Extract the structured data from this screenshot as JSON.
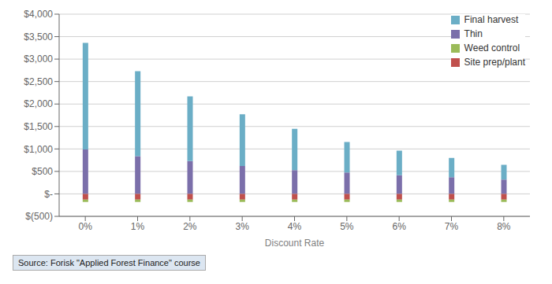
{
  "chart_data": {
    "type": "bar",
    "stacked": true,
    "grid": true,
    "xlabel": "Discount Rate",
    "categories": [
      "0%",
      "1%",
      "2%",
      "3%",
      "4%",
      "5%",
      "6%",
      "7%",
      "8%"
    ],
    "series": [
      {
        "name": "Thin",
        "color": "#7b6faa",
        "values": [
          990,
          840,
          730,
          620,
          530,
          475,
          415,
          370,
          320
        ]
      },
      {
        "name": "Final harvest",
        "color": "#6baec6",
        "values": [
          2370,
          1890,
          1440,
          1150,
          920,
          680,
          545,
          430,
          325
        ]
      },
      {
        "name": "Site prep/plant",
        "color": "#c0504d",
        "values": [
          -130,
          -130,
          -130,
          -130,
          -130,
          -130,
          -130,
          -130,
          -130
        ]
      },
      {
        "name": "Weed control",
        "color": "#9bbb59",
        "values": [
          -50,
          -50,
          -50,
          -50,
          -50,
          -50,
          -50,
          -50,
          -50
        ]
      }
    ],
    "ylim": [
      -500,
      4000
    ],
    "yticks": [
      {
        "value": -500,
        "label": "$(500)"
      },
      {
        "value": 0,
        "label": "$-"
      },
      {
        "value": 500,
        "label": "$500"
      },
      {
        "value": 1000,
        "label": "$1,000"
      },
      {
        "value": 1500,
        "label": "$1,500"
      },
      {
        "value": 2000,
        "label": "$2,000"
      },
      {
        "value": 2500,
        "label": "$2,500"
      },
      {
        "value": 3000,
        "label": "$3,000"
      },
      {
        "value": 3500,
        "label": "$3,500"
      },
      {
        "value": 4000,
        "label": "$4,000"
      }
    ],
    "legend": "upper right",
    "annotations": [
      "Source: Forisk \"Applied Forest Finance\" course"
    ]
  }
}
